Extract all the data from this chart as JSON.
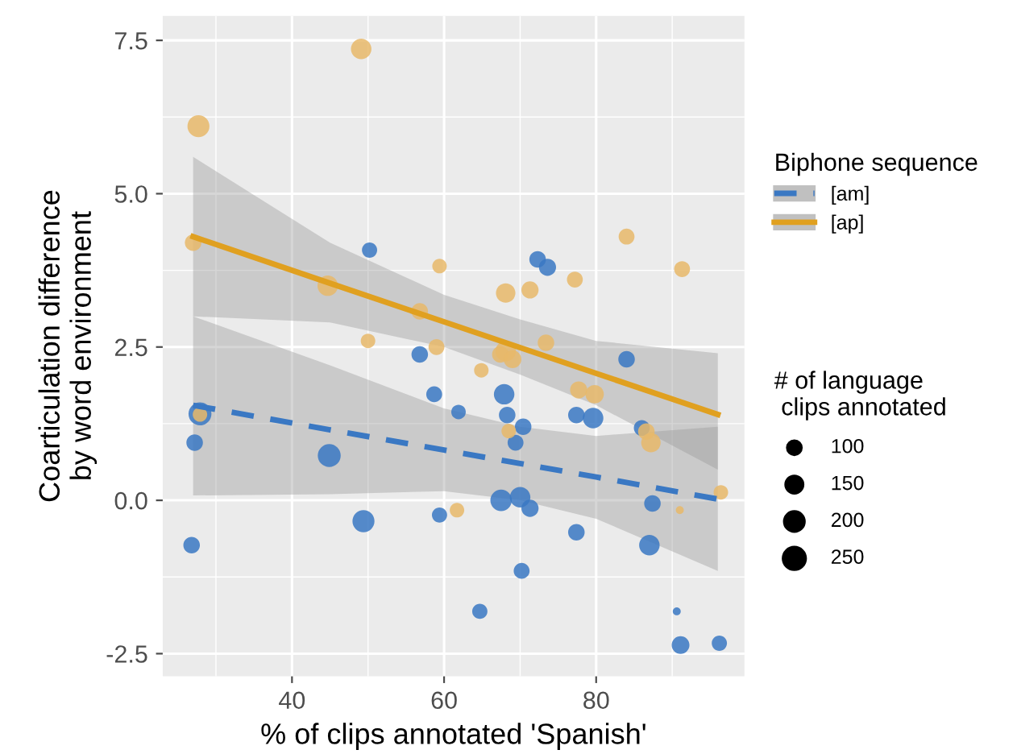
{
  "chart_data": {
    "type": "bubble",
    "xlabel": "% of clips annotated 'Spanish'",
    "ylabel": "Coarticulation difference\nby word environment",
    "legend_title": "Biphone sequence",
    "annotations": [
      "# of language\n clips annotated"
    ],
    "size_legend": [
      100,
      150,
      200,
      250
    ],
    "xlim": [
      23,
      99.5
    ],
    "ylim": [
      -2.87,
      7.9
    ],
    "xticks": [
      40,
      60,
      80
    ],
    "yticks": [
      {
        "value": -2.5,
        "label": "-2.5"
      },
      {
        "value": 0,
        "label": "0.0"
      },
      {
        "value": 2.5,
        "label": "2.5"
      },
      {
        "value": 5,
        "label": "5.0"
      },
      {
        "value": 7.5,
        "label": "7.5"
      }
    ],
    "grid": true,
    "legend": "right",
    "series": [
      {
        "color": "#e8b96a",
        "x": [
          27.7,
          27,
          49.1,
          44.7,
          59.4,
          50,
          59,
          56.8,
          68.1,
          71.3,
          77.2,
          84,
          91.3,
          73.4,
          68.1,
          64.9,
          67.4,
          69,
          77.7,
          79.8,
          87.2,
          86.6,
          96.4,
          61.7,
          68.5,
          91,
          27.9
        ],
        "values": [
          6.1,
          4.2,
          7.36,
          3.5,
          3.82,
          2.6,
          2.5,
          3.08,
          3.38,
          3.43,
          3.6,
          4.3,
          3.77,
          2.57,
          2.43,
          2.12,
          2.38,
          2.3,
          1.8,
          1.73,
          0.94,
          1.12,
          0.13,
          -0.16,
          1.13,
          -0.16,
          1.4
        ],
        "sizes": [
          230,
          130,
          200,
          200,
          100,
          100,
          120,
          130,
          180,
          140,
          120,
          120,
          120,
          130,
          200,
          100,
          130,
          150,
          140,
          160,
          180,
          130,
          100,
          100,
          100,
          30,
          100
        ]
      },
      {
        "color": "#3a78c3",
        "x": [
          27.9,
          27.2,
          26.8,
          44.9,
          49.4,
          50.2,
          56.8,
          58.7,
          59.4,
          61.9,
          64.7,
          67.9,
          68.3,
          67.5,
          70,
          71.3,
          70.4,
          69.4,
          70.2,
          72.3,
          73.6,
          77.4,
          77.4,
          79.6,
          84,
          86,
          87.4,
          87,
          90.6,
          91.1,
          96.2
        ],
        "values": [
          1.41,
          0.94,
          -0.73,
          0.73,
          -0.34,
          4.08,
          2.38,
          1.73,
          -0.24,
          1.44,
          -1.81,
          1.73,
          1.39,
          0.0,
          0.05,
          -0.13,
          1.2,
          0.94,
          -1.15,
          3.93,
          3.8,
          -0.52,
          1.39,
          1.34,
          2.3,
          1.18,
          -0.05,
          -0.73,
          -1.81,
          -2.36,
          -2.33
        ],
        "sizes": [
          250,
          130,
          130,
          250,
          230,
          110,
          130,
          120,
          110,
          100,
          110,
          200,
          130,
          220,
          200,
          140,
          130,
          120,
          120,
          130,
          140,
          130,
          130,
          200,
          130,
          120,
          130,
          200,
          30,
          150,
          110
        ]
      },
      {
        "type": "line",
        "name": "[am]",
        "color": "#3a78c3",
        "line_style": "dashed",
        "x": [
          27,
          45,
          60,
          70,
          80,
          96
        ],
        "values": [
          1.55,
          1.15,
          0.82,
          0.6,
          0.38,
          0.02
        ],
        "lower": [
          0.08,
          0.1,
          0.15,
          0.0,
          -0.3,
          -1.15
        ],
        "upper": [
          3.0,
          2.2,
          1.5,
          1.2,
          1.05,
          1.2
        ]
      },
      {
        "type": "line",
        "name": "[ap]",
        "color": "#e0a020",
        "line_style": "solid",
        "x": [
          27,
          45,
          60,
          70,
          80,
          96
        ],
        "values": [
          4.3,
          3.54,
          2.91,
          2.49,
          2.07,
          1.4
        ],
        "lower": [
          3.0,
          2.9,
          2.5,
          2.05,
          1.55,
          0.5
        ],
        "upper": [
          5.6,
          4.2,
          3.35,
          2.95,
          2.6,
          2.4
        ]
      }
    ]
  }
}
